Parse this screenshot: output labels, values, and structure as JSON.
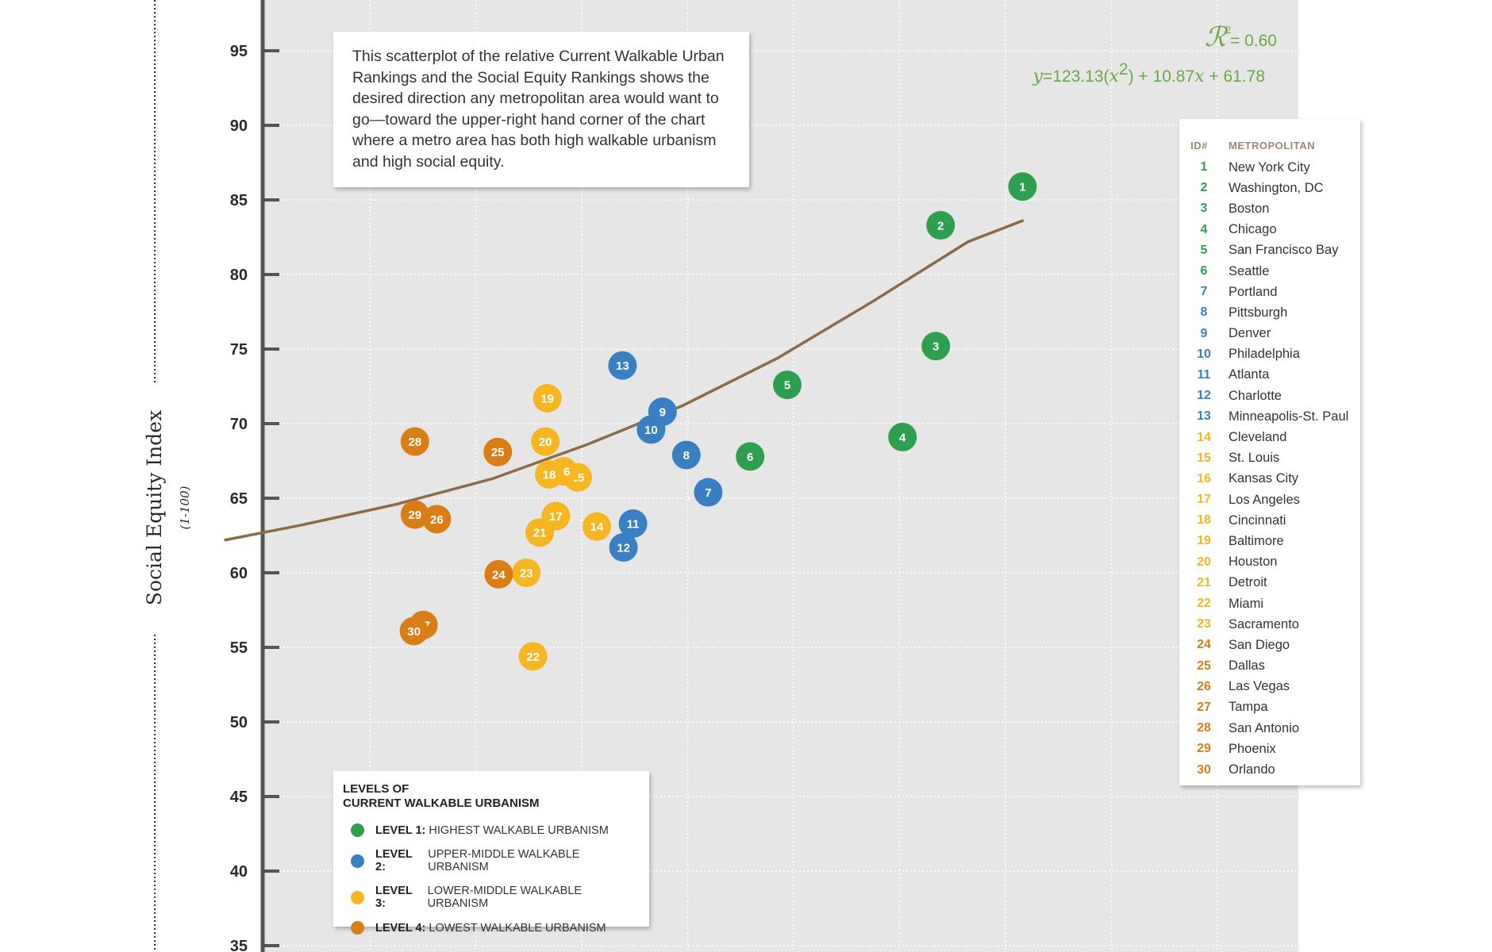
{
  "chart_data": {
    "type": "scatter",
    "ylabel": "Social Equity Index",
    "ylabel_unit": "(1-100)",
    "ylim": [
      35,
      97
    ],
    "y_ticks": [
      35,
      40,
      45,
      50,
      55,
      60,
      65,
      70,
      75,
      80,
      85,
      90,
      95
    ],
    "grid": true,
    "r2_label": "= 0.60",
    "equation": {
      "y": "y",
      "eq1": "=123.13(",
      "x1": "x",
      "sup": "2",
      "eq2": ") + 10.87",
      "x2": "x",
      "eq3": " + 61.78"
    },
    "trendline": [
      {
        "x": 0.7,
        "y": 62.2
      },
      {
        "x": 1.5,
        "y": 63.2
      },
      {
        "x": 2.5,
        "y": 64.6
      },
      {
        "x": 3.5,
        "y": 66.3
      },
      {
        "x": 4.5,
        "y": 68.6
      },
      {
        "x": 5.5,
        "y": 71.2
      },
      {
        "x": 6.5,
        "y": 74.4
      },
      {
        "x": 7.5,
        "y": 78.2
      },
      {
        "x": 8.5,
        "y": 82.2
      },
      {
        "x": 9.07,
        "y": 83.6
      }
    ],
    "points": [
      {
        "id": "1",
        "x": 9.07,
        "y": 85.9,
        "level": 1
      },
      {
        "id": "2",
        "x": 8.21,
        "y": 83.3,
        "level": 1
      },
      {
        "id": "3",
        "x": 8.16,
        "y": 75.2,
        "level": 1
      },
      {
        "id": "4",
        "x": 7.81,
        "y": 69.1,
        "level": 1
      },
      {
        "id": "5",
        "x": 6.6,
        "y": 72.6,
        "level": 1
      },
      {
        "id": "6",
        "x": 6.21,
        "y": 67.8,
        "level": 1
      },
      {
        "id": "7",
        "x": 5.77,
        "y": 65.4,
        "level": 2
      },
      {
        "id": "8",
        "x": 5.54,
        "y": 67.9,
        "level": 2
      },
      {
        "id": "9",
        "x": 5.29,
        "y": 70.8,
        "level": 2
      },
      {
        "id": "10",
        "x": 5.17,
        "y": 69.6,
        "level": 2
      },
      {
        "id": "11",
        "x": 4.98,
        "y": 63.3,
        "level": 2
      },
      {
        "id": "12",
        "x": 4.88,
        "y": 61.7,
        "level": 2
      },
      {
        "id": "13",
        "x": 4.87,
        "y": 73.9,
        "level": 2
      },
      {
        "id": "14",
        "x": 4.6,
        "y": 63.1,
        "level": 3
      },
      {
        "id": "15",
        "x": 4.4,
        "y": 66.4,
        "level": 3
      },
      {
        "id": "16",
        "x": 4.25,
        "y": 66.8,
        "level": 3
      },
      {
        "id": "17",
        "x": 4.17,
        "y": 63.8,
        "level": 3
      },
      {
        "id": "18",
        "x": 4.1,
        "y": 66.6,
        "level": 3
      },
      {
        "id": "19",
        "x": 4.08,
        "y": 71.7,
        "level": 3
      },
      {
        "id": "20",
        "x": 4.06,
        "y": 68.8,
        "level": 3
      },
      {
        "id": "21",
        "x": 4.0,
        "y": 62.7,
        "level": 3
      },
      {
        "id": "22",
        "x": 3.93,
        "y": 54.4,
        "level": 3
      },
      {
        "id": "23",
        "x": 3.86,
        "y": 60.0,
        "level": 3
      },
      {
        "id": "24",
        "x": 3.57,
        "y": 59.9,
        "level": 4
      },
      {
        "id": "25",
        "x": 3.56,
        "y": 68.1,
        "level": 4
      },
      {
        "id": "26",
        "x": 2.92,
        "y": 63.6,
        "level": 4
      },
      {
        "id": "27",
        "x": 2.78,
        "y": 56.5,
        "level": 4
      },
      {
        "id": "28",
        "x": 2.69,
        "y": 68.8,
        "level": 4
      },
      {
        "id": "29",
        "x": 2.69,
        "y": 63.9,
        "level": 4
      },
      {
        "id": "30",
        "x": 2.68,
        "y": 56.1,
        "level": 4
      }
    ]
  },
  "colors": {
    "level1": "#2e9e4f",
    "level2": "#3a7fc1",
    "level3": "#f4b621",
    "level4": "#d97d17",
    "trendline": "#8b6b4a",
    "plot_bg": "#e6e6e7",
    "grid": "#ffffff",
    "axis": "#555555",
    "equation": "#6aa845"
  },
  "description": "This scatterplot of the relative Current Walkable Urban Rankings and the Social Equity Rankings shows the desired direction any metropolitan area would want to go—toward the upper-right hand corner of the chart where a metro area has both high walkable urbanism and high social equity.",
  "levels_legend": {
    "title_line1": "LEVELS OF",
    "title_line2": "CURRENT WALKABLE URBANISM",
    "items": [
      {
        "name": "LEVEL 1:",
        "desc": "HIGHEST WALKABLE URBANISM",
        "color": "#2e9e4f"
      },
      {
        "name": "LEVEL 2:",
        "desc": "UPPER-MIDDLE WALKABLE URBANISM",
        "color": "#3a7fc1"
      },
      {
        "name": "LEVEL 3:",
        "desc": "LOWER-MIDDLE WALKABLE URBANISM",
        "color": "#f4b621"
      },
      {
        "name": "LEVEL 4:",
        "desc": "LOWEST WALKABLE URBANISM",
        "color": "#d97d17"
      }
    ]
  },
  "metro_table": {
    "header_id": "ID#",
    "header_name": "METROPOLITAN",
    "rows": [
      {
        "id": "1",
        "name": "New York City",
        "level": 1
      },
      {
        "id": "2",
        "name": "Washington, DC",
        "level": 1
      },
      {
        "id": "3",
        "name": "Boston",
        "level": 1
      },
      {
        "id": "4",
        "name": "Chicago",
        "level": 1
      },
      {
        "id": "5",
        "name": "San Francisco Bay",
        "level": 1
      },
      {
        "id": "6",
        "name": "Seattle",
        "level": 1
      },
      {
        "id": "7",
        "name": "Portland",
        "level": 2
      },
      {
        "id": "8",
        "name": "Pittsburgh",
        "level": 2
      },
      {
        "id": "9",
        "name": "Denver",
        "level": 2
      },
      {
        "id": "10",
        "name": "Philadelphia",
        "level": 2
      },
      {
        "id": "11",
        "name": "Atlanta",
        "level": 2
      },
      {
        "id": "12",
        "name": "Charlotte",
        "level": 2
      },
      {
        "id": "13",
        "name": "Minneapolis-St. Paul",
        "level": 2
      },
      {
        "id": "14",
        "name": "Cleveland",
        "level": 3
      },
      {
        "id": "15",
        "name": "St. Louis",
        "level": 3
      },
      {
        "id": "16",
        "name": "Kansas City",
        "level": 3
      },
      {
        "id": "17",
        "name": "Los Angeles",
        "level": 3
      },
      {
        "id": "18",
        "name": "Cincinnati",
        "level": 3
      },
      {
        "id": "19",
        "name": "Baltimore",
        "level": 3
      },
      {
        "id": "20",
        "name": "Houston",
        "level": 3
      },
      {
        "id": "21",
        "name": "Detroit",
        "level": 3
      },
      {
        "id": "22",
        "name": "Miami",
        "level": 3
      },
      {
        "id": "23",
        "name": "Sacramento",
        "level": 3
      },
      {
        "id": "24",
        "name": "San Diego",
        "level": 4
      },
      {
        "id": "25",
        "name": "Dallas",
        "level": 4
      },
      {
        "id": "26",
        "name": "Las Vegas",
        "level": 4
      },
      {
        "id": "27",
        "name": "Tampa",
        "level": 4
      },
      {
        "id": "28",
        "name": "San Antonio",
        "level": 4
      },
      {
        "id": "29",
        "name": "Phoenix",
        "level": 4
      },
      {
        "id": "30",
        "name": "Orlando",
        "level": 4
      }
    ]
  }
}
